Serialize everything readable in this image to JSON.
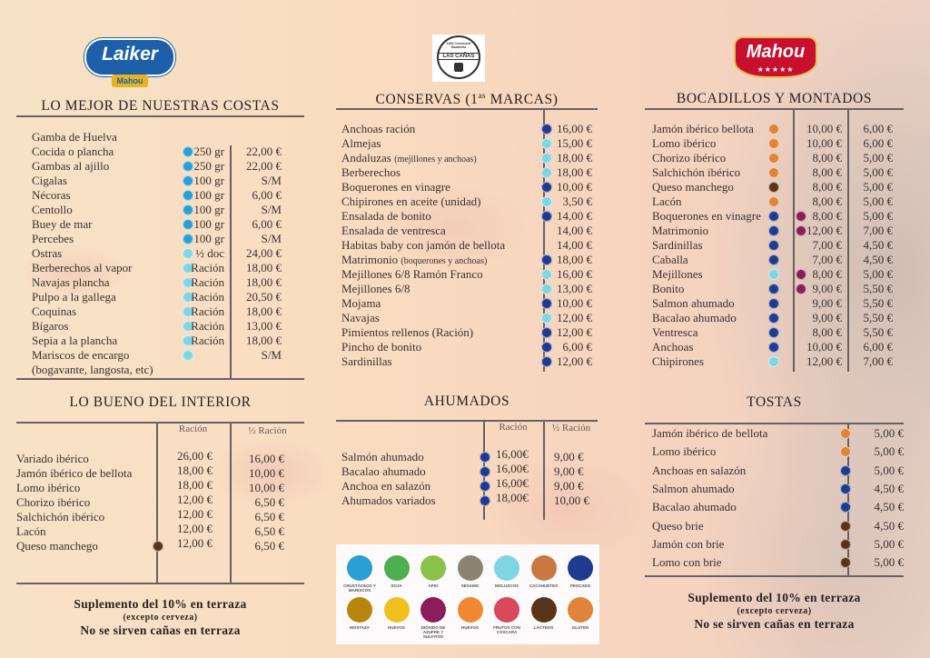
{
  "logos": {
    "left": {
      "text": "Laiker",
      "sub": "Mahou"
    },
    "center": {
      "text": "LAS CAÑAS",
      "top": "1920 Cervecería Madrileña"
    },
    "right": {
      "text": "Mahou"
    }
  },
  "allergen_colors": {
    "crustaceos": "#2a9fd6",
    "soja": "#4caf50",
    "apio": "#8bc34a",
    "sesamo": "#8a8470",
    "moluscos": "#7fd6e2",
    "cacahuetes": "#c87941",
    "pescado": "#1f3a8f",
    "mostaza": "#b8860b",
    "huevos": "#f0c020",
    "sulfitos": "#8b1e5a",
    "huevos2": "#f08a30",
    "frutos": "#d9485b",
    "lacteos": "#5a3418",
    "gluten": "#e0843a"
  },
  "costas": {
    "title": "LO MEJOR DE NUESTRAS COSTAS",
    "items": [
      {
        "name": "Gamba de Huelva",
        "allergens": [],
        "qty": "",
        "price": ""
      },
      {
        "name": "Cocida o plancha",
        "allergens": [
          "crustaceos"
        ],
        "qty": "250 gr",
        "price": "22,00 €"
      },
      {
        "name": "Gambas al ajillo",
        "allergens": [
          "crustaceos"
        ],
        "qty": "250 gr",
        "price": "22,00 €"
      },
      {
        "name": "Cigalas",
        "allergens": [
          "crustaceos"
        ],
        "qty": "100 gr",
        "price": "S/M"
      },
      {
        "name": "Nécoras",
        "allergens": [
          "crustaceos"
        ],
        "qty": "100 gr",
        "price": "6,00 €"
      },
      {
        "name": "Centollo",
        "allergens": [
          "crustaceos"
        ],
        "qty": "100 gr",
        "price": "S/M"
      },
      {
        "name": "Buey de mar",
        "allergens": [
          "crustaceos"
        ],
        "qty": "100 gr",
        "price": "6,00 €"
      },
      {
        "name": "Percebes",
        "allergens": [
          "crustaceos"
        ],
        "qty": "100 gr",
        "price": "S/M"
      },
      {
        "name": "Ostras",
        "allergens": [
          "moluscos"
        ],
        "qty": "½ doc",
        "price": "24,00 €"
      },
      {
        "name": "Berberechos al vapor",
        "allergens": [
          "moluscos"
        ],
        "qty": "Ración",
        "price": "18,00 €"
      },
      {
        "name": "Navajas plancha",
        "allergens": [
          "moluscos"
        ],
        "qty": "Ración",
        "price": "18,00 €"
      },
      {
        "name": "Pulpo a la gallega",
        "allergens": [
          "moluscos"
        ],
        "qty": "Ración",
        "price": "20,50 €"
      },
      {
        "name": "Coquinas",
        "allergens": [
          "moluscos"
        ],
        "qty": "Ración",
        "price": "18,00 €"
      },
      {
        "name": "Bígaros",
        "allergens": [
          "moluscos"
        ],
        "qty": "Ración",
        "price": "13,00 €"
      },
      {
        "name": "Sepia a la plancha",
        "allergens": [
          "cacahuetes",
          "moluscos"
        ],
        "qty": "Ración",
        "price": "18,00 €"
      },
      {
        "name": "Mariscos de encargo",
        "allergens": [
          "crustaceos",
          "moluscos"
        ],
        "qty": "",
        "price": "S/M"
      },
      {
        "name": "(bogavante, langosta, etc)",
        "allergens": [],
        "qty": "",
        "price": ""
      }
    ]
  },
  "conservas": {
    "title": "CONSERVAS (1",
    "title_sup": "as",
    "title_end": " MARCAS)",
    "items": [
      {
        "name": "Anchoas  ración",
        "note": "",
        "allergens": [
          "pescado"
        ],
        "price": "16,00 €"
      },
      {
        "name": "Almejas",
        "note": "",
        "allergens": [
          "sulfitos",
          "moluscos"
        ],
        "price": "15,00 €"
      },
      {
        "name": "Andaluzas",
        "note": "(mejillones y anchoas)",
        "allergens": [
          "pescado",
          "sulfitos",
          "moluscos"
        ],
        "price": "18,00 €"
      },
      {
        "name": "Berberechos",
        "note": "",
        "allergens": [
          "sulfitos",
          "moluscos"
        ],
        "price": "18,00 €"
      },
      {
        "name": "Boquerones en vinagre",
        "note": "",
        "allergens": [
          "sulfitos",
          "pescado"
        ],
        "price": "10,00 €"
      },
      {
        "name": "Chipirones en aceite (unidad)",
        "note": "",
        "allergens": [
          "moluscos"
        ],
        "price": "3,50 €"
      },
      {
        "name": "Ensalada de bonito",
        "note": "",
        "allergens": [
          "sulfitos",
          "pescado"
        ],
        "price": "14,00 €"
      },
      {
        "name": "Ensalada de ventresca",
        "note": "",
        "allergens": [],
        "price": "14,00 €"
      },
      {
        "name": "Habitas baby con jamón de bellota",
        "note": "",
        "allergens": [],
        "price": "14,00 €"
      },
      {
        "name": "Matrimonio",
        "note": "(boquerones y anchoas)",
        "allergens": [
          "sulfitos",
          "pescado"
        ],
        "price": "18,00 €"
      },
      {
        "name": "Mejillones 6/8 Ramón Franco",
        "note": "",
        "allergens": [
          "sulfitos",
          "moluscos"
        ],
        "price": "16,00 €"
      },
      {
        "name": "Mejillones 6/8",
        "note": "",
        "allergens": [
          "sulfitos",
          "moluscos"
        ],
        "price": "13,00 €"
      },
      {
        "name": "Mojama",
        "note": "",
        "allergens": [
          "cacahuetes",
          "pescado"
        ],
        "price": "10,00 €"
      },
      {
        "name": "Navajas",
        "note": "",
        "allergens": [
          "sulfitos",
          "moluscos"
        ],
        "price": "12,00 €"
      },
      {
        "name": "Pimientos rellenos (Ración)",
        "note": "",
        "allergens": [
          "sulfitos",
          "pescado"
        ],
        "price": "12,00 €"
      },
      {
        "name": "Pincho de bonito",
        "note": "",
        "allergens": [
          "sulfitos",
          "pescado"
        ],
        "price": "6,00 €"
      },
      {
        "name": "Sardinillas",
        "note": "",
        "allergens": [
          "pescado"
        ],
        "price": "12,00 €"
      }
    ]
  },
  "bocadillos": {
    "title": "BOCADILLOS Y MONTADOS",
    "items": [
      {
        "name": "Jamón ibérico bellota",
        "allergens": [
          "gluten"
        ],
        "extra": [],
        "p1": "10,00 €",
        "p2": "6,00 €"
      },
      {
        "name": "Lomo ibérico",
        "allergens": [
          "gluten"
        ],
        "extra": [],
        "p1": "10,00 €",
        "p2": "6,00 €"
      },
      {
        "name": "Chorizo ibérico",
        "allergens": [
          "gluten"
        ],
        "extra": [],
        "p1": "8,00 €",
        "p2": "5,00 €"
      },
      {
        "name": "Salchichón ibérico",
        "allergens": [
          "gluten"
        ],
        "extra": [],
        "p1": "8,00 €",
        "p2": "5,00 €"
      },
      {
        "name": "Queso manchego",
        "allergens": [
          "gluten",
          "lacteos"
        ],
        "extra": [],
        "p1": "8,00 €",
        "p2": "5,00 €"
      },
      {
        "name": "Lacón",
        "allergens": [
          "gluten"
        ],
        "extra": [],
        "p1": "8,00 €",
        "p2": "5,00 €"
      },
      {
        "name": "Boquerones en vinagre",
        "allergens": [
          "gluten",
          "pescado"
        ],
        "extra": [
          "sulfitos"
        ],
        "p1": "8,00 €",
        "p2": "5,00 €"
      },
      {
        "name": "Matrimonio",
        "allergens": [
          "gluten",
          "pescado"
        ],
        "extra": [
          "sulfitos"
        ],
        "p1": "12,00 €",
        "p2": "7,00 €"
      },
      {
        "name": "Sardinillas",
        "allergens": [
          "gluten",
          "pescado"
        ],
        "extra": [],
        "p1": "7,00 €",
        "p2": "4,50 €"
      },
      {
        "name": "Caballa",
        "allergens": [
          "gluten",
          "pescado"
        ],
        "extra": [],
        "p1": "7,00 €",
        "p2": "4,50 €"
      },
      {
        "name": "Mejillones",
        "allergens": [
          "gluten",
          "moluscos"
        ],
        "extra": [
          "sulfitos"
        ],
        "p1": "8,00 €",
        "p2": "5,00 €"
      },
      {
        "name": "Bonito",
        "allergens": [
          "gluten",
          "pescado"
        ],
        "extra": [
          "sulfitos"
        ],
        "p1": "9,00 €",
        "p2": "5,50 €"
      },
      {
        "name": "Salmon ahumado",
        "allergens": [
          "gluten",
          "pescado"
        ],
        "extra": [],
        "p1": "9,00 €",
        "p2": "5,50 €"
      },
      {
        "name": "Bacalao ahumado",
        "allergens": [
          "gluten",
          "pescado"
        ],
        "extra": [],
        "p1": "9,00 €",
        "p2": "5,50 €"
      },
      {
        "name": "Ventresca",
        "allergens": [
          "gluten",
          "pescado"
        ],
        "extra": [],
        "p1": "8,00 €",
        "p2": "5,50 €"
      },
      {
        "name": "Anchoas",
        "allergens": [
          "gluten",
          "pescado"
        ],
        "extra": [],
        "p1": "10,00 €",
        "p2": "6,00 €"
      },
      {
        "name": "Chipirones",
        "allergens": [
          "gluten",
          "moluscos"
        ],
        "extra": [],
        "p1": "12,00 €",
        "p2": "7,00 €"
      }
    ]
  },
  "interior": {
    "title": "LO BUENO DEL INTERIOR",
    "col1": "Ración",
    "col2": "½ Ración",
    "items": [
      {
        "name": "Variado ibérico",
        "allergens": [],
        "p1": "26,00 €",
        "p2": "16,00 €"
      },
      {
        "name": "Jamón ibérico de bellota",
        "allergens": [],
        "p1": "18,00 €",
        "p2": "10,00 €"
      },
      {
        "name": "Lomo ibérico",
        "allergens": [],
        "p1": "18,00 €",
        "p2": "10,00 €"
      },
      {
        "name": "Chorizo ibérico",
        "allergens": [],
        "p1": "12,00 €",
        "p2": "6,50 €"
      },
      {
        "name": "Salchichón ibérico",
        "allergens": [],
        "p1": "12,00 €",
        "p2": "6,50 €"
      },
      {
        "name": "Lacón",
        "allergens": [],
        "p1": "12,00 €",
        "p2": "6,50 €"
      },
      {
        "name": "Queso manchego",
        "allergens": [
          "lacteos"
        ],
        "p1": "12,00 €",
        "p2": "6,50 €"
      }
    ]
  },
  "ahumados": {
    "title": "AHUMADOS",
    "col1": "Ración",
    "col2": "½ Ración",
    "items": [
      {
        "name": "Salmón ahumado",
        "allergens": [
          "pescado"
        ],
        "p1": "16,00€",
        "p2": "9,00 €"
      },
      {
        "name": "Bacalao ahumado",
        "allergens": [
          "pescado"
        ],
        "p1": "16,00€",
        "p2": "9,00 €"
      },
      {
        "name": "Anchoa en salazón",
        "allergens": [
          "pescado"
        ],
        "p1": "16,00€",
        "p2": "9,00 €"
      },
      {
        "name": "Ahumados variados",
        "allergens": [
          "pescado"
        ],
        "p1": "18,00€",
        "p2": "10,00 €"
      }
    ]
  },
  "tostas": {
    "title": "TOSTAS",
    "items": [
      {
        "name": "Jamón ibérico de bellota",
        "allergens": [
          "gluten"
        ],
        "price": "5,00 €"
      },
      {
        "name": "Lomo ibérico",
        "allergens": [
          "gluten"
        ],
        "price": "5,00 €"
      },
      {
        "name": "Anchoas en salazón",
        "allergens": [
          "gluten",
          "pescado"
        ],
        "price": "5,00 €"
      },
      {
        "name": "Salmon ahumado",
        "allergens": [
          "gluten",
          "pescado"
        ],
        "price": "4,50 €"
      },
      {
        "name": "Bacalao ahumado",
        "allergens": [
          "gluten",
          "pescado"
        ],
        "price": "4,50 €"
      },
      {
        "name": "Queso brie",
        "allergens": [
          "gluten",
          "lacteos"
        ],
        "price": "4,50 €"
      },
      {
        "name": "Jamón con brie",
        "allergens": [
          "gluten",
          "lacteos"
        ],
        "price": "5,00 €"
      },
      {
        "name": "Lomo con brie",
        "allergens": [
          "gluten",
          "lacteos"
        ],
        "price": "5,00 €"
      }
    ]
  },
  "footer": {
    "line1": "Suplemento del 10% en terraza",
    "line2": "(excepto cerveza)",
    "line3": "No se sirven cañas en terraza"
  },
  "legend": [
    {
      "key": "crustaceos",
      "label": "CRUSTÁCEOS Y MARISCOS"
    },
    {
      "key": "soja",
      "label": "SOJA"
    },
    {
      "key": "apio",
      "label": "APIO"
    },
    {
      "key": "sesamo",
      "label": "SÉSAMO"
    },
    {
      "key": "moluscos",
      "label": "MOLUSCOS"
    },
    {
      "key": "cacahuetes",
      "label": "CACAHUETES"
    },
    {
      "key": "pescado",
      "label": "PESCADO"
    },
    {
      "key": "mostaza",
      "label": "MOSTAZA"
    },
    {
      "key": "huevos",
      "label": "HUEVOS"
    },
    {
      "key": "sulfitos",
      "label": "DIÓXIDO DE AZUFRE Y SULFITOS"
    },
    {
      "key": "huevos2",
      "label": "HUEVOS"
    },
    {
      "key": "frutos",
      "label": "FRUTOS CON CÁSCARA"
    },
    {
      "key": "lacteos",
      "label": "LÁCTEOS"
    },
    {
      "key": "gluten",
      "label": "GLUTEN"
    }
  ]
}
